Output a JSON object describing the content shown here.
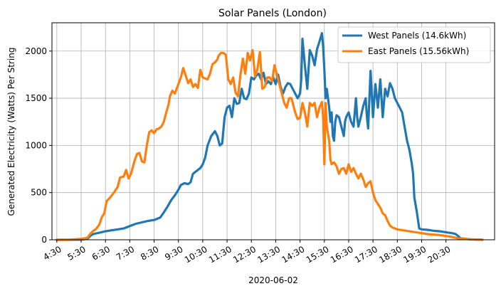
{
  "chart_data": {
    "type": "line",
    "title": "Solar Panels (London)",
    "xlabel": "2020-06-02",
    "ylabel": "Generated Electricity (Watts) Per String",
    "x_unit": "hours",
    "xlim": [
      4.3,
      22.5
    ],
    "ylim": [
      0,
      2300
    ],
    "x_ticks": [
      4.5,
      5.5,
      6.5,
      7.5,
      8.5,
      9.5,
      10.5,
      11.5,
      12.5,
      13.5,
      14.5,
      15.5,
      16.5,
      17.5,
      18.5,
      19.5,
      20.5
    ],
    "x_tick_labels": [
      "4:30",
      "5:30",
      "6:30",
      "7:30",
      "8:30",
      "9:30",
      "10:30",
      "11:30",
      "12:30",
      "13:30",
      "14:30",
      "15:30",
      "16:30",
      "17:30",
      "18:30",
      "19:30",
      "20:30"
    ],
    "y_ticks": [
      0,
      500,
      1000,
      1500,
      2000
    ],
    "y_tick_labels": [
      "0",
      "500",
      "1000",
      "1500",
      "2000"
    ],
    "grid": true,
    "legend_position": "top-right",
    "series": [
      {
        "name": "West Panels (14.6kWh)",
        "color": "#1f77b4",
        "points": [
          [
            4.5,
            0
          ],
          [
            5.0,
            0
          ],
          [
            5.5,
            2
          ],
          [
            5.75,
            10
          ],
          [
            5.9,
            45
          ],
          [
            6.0,
            60
          ],
          [
            6.25,
            75
          ],
          [
            6.5,
            90
          ],
          [
            6.75,
            100
          ],
          [
            7.0,
            110
          ],
          [
            7.25,
            120
          ],
          [
            7.5,
            145
          ],
          [
            7.75,
            170
          ],
          [
            8.0,
            185
          ],
          [
            8.25,
            200
          ],
          [
            8.5,
            210
          ],
          [
            8.75,
            235
          ],
          [
            8.9,
            290
          ],
          [
            9.05,
            350
          ],
          [
            9.2,
            420
          ],
          [
            9.35,
            470
          ],
          [
            9.5,
            530
          ],
          [
            9.6,
            580
          ],
          [
            9.75,
            600
          ],
          [
            9.9,
            590
          ],
          [
            10.0,
            610
          ],
          [
            10.1,
            700
          ],
          [
            10.25,
            730
          ],
          [
            10.4,
            760
          ],
          [
            10.5,
            800
          ],
          [
            10.6,
            870
          ],
          [
            10.7,
            1000
          ],
          [
            10.85,
            1100
          ],
          [
            11.0,
            1150
          ],
          [
            11.1,
            1100
          ],
          [
            11.2,
            1000
          ],
          [
            11.3,
            1020
          ],
          [
            11.4,
            1300
          ],
          [
            11.5,
            1400
          ],
          [
            11.6,
            1420
          ],
          [
            11.7,
            1300
          ],
          [
            11.8,
            1500
          ],
          [
            11.9,
            1440
          ],
          [
            12.0,
            1450
          ],
          [
            12.1,
            1600
          ],
          [
            12.2,
            1500
          ],
          [
            12.3,
            1490
          ],
          [
            12.4,
            1550
          ],
          [
            12.5,
            1720
          ],
          [
            12.6,
            1700
          ],
          [
            12.7,
            1740
          ],
          [
            12.8,
            1760
          ],
          [
            12.9,
            1700
          ],
          [
            13.0,
            1770
          ],
          [
            13.1,
            1650
          ],
          [
            13.2,
            1680
          ],
          [
            13.3,
            1650
          ],
          [
            13.4,
            1720
          ],
          [
            13.5,
            1650
          ],
          [
            13.6,
            1750
          ],
          [
            13.7,
            1620
          ],
          [
            13.8,
            1550
          ],
          [
            13.9,
            1620
          ],
          [
            14.0,
            1660
          ],
          [
            14.1,
            1650
          ],
          [
            14.2,
            1600
          ],
          [
            14.3,
            1550
          ],
          [
            14.4,
            1500
          ],
          [
            14.5,
            1550
          ],
          [
            14.55,
            1700
          ],
          [
            14.6,
            2130
          ],
          [
            14.7,
            1850
          ],
          [
            14.8,
            1600
          ],
          [
            14.9,
            2010
          ],
          [
            15.0,
            1950
          ],
          [
            15.1,
            1850
          ],
          [
            15.2,
            2020
          ],
          [
            15.3,
            2100
          ],
          [
            15.4,
            2190
          ],
          [
            15.45,
            2050
          ],
          [
            15.5,
            1800
          ],
          [
            15.55,
            1500
          ],
          [
            15.6,
            1600
          ],
          [
            15.7,
            1400
          ],
          [
            15.75,
            1250
          ],
          [
            15.8,
            1350
          ],
          [
            15.85,
            1100
          ],
          [
            15.9,
            1050
          ],
          [
            15.95,
            1250
          ],
          [
            16.0,
            1320
          ],
          [
            16.1,
            1300
          ],
          [
            16.2,
            1200
          ],
          [
            16.3,
            1100
          ],
          [
            16.35,
            1250
          ],
          [
            16.4,
            1300
          ],
          [
            16.5,
            1350
          ],
          [
            16.6,
            1250
          ],
          [
            16.7,
            1200
          ],
          [
            16.75,
            1350
          ],
          [
            16.8,
            1500
          ],
          [
            16.85,
            1300
          ],
          [
            16.9,
            1200
          ],
          [
            17.0,
            1300
          ],
          [
            17.1,
            1420
          ],
          [
            17.2,
            1500
          ],
          [
            17.25,
            1300
          ],
          [
            17.3,
            1180
          ],
          [
            17.4,
            1790
          ],
          [
            17.5,
            1300
          ],
          [
            17.6,
            1650
          ],
          [
            17.7,
            1400
          ],
          [
            17.8,
            1700
          ],
          [
            17.9,
            1300
          ],
          [
            18.0,
            1600
          ],
          [
            18.1,
            1520
          ],
          [
            18.2,
            1660
          ],
          [
            18.3,
            1600
          ],
          [
            18.4,
            1500
          ],
          [
            18.5,
            1450
          ],
          [
            18.6,
            1400
          ],
          [
            18.7,
            1350
          ],
          [
            18.8,
            1200
          ],
          [
            18.9,
            1050
          ],
          [
            19.0,
            950
          ],
          [
            19.1,
            800
          ],
          [
            19.15,
            700
          ],
          [
            19.2,
            450
          ],
          [
            19.3,
            300
          ],
          [
            19.4,
            120
          ],
          [
            19.5,
            110
          ],
          [
            19.75,
            105
          ],
          [
            20.0,
            95
          ],
          [
            20.25,
            90
          ],
          [
            20.5,
            80
          ],
          [
            20.75,
            70
          ],
          [
            20.9,
            60
          ],
          [
            21.0,
            40
          ],
          [
            21.1,
            15
          ],
          [
            21.5,
            5
          ],
          [
            22.0,
            0
          ]
        ]
      },
      {
        "name": "East Panels (15.56kWh)",
        "color": "#ff7f0e",
        "points": [
          [
            4.5,
            0
          ],
          [
            5.0,
            0
          ],
          [
            5.25,
            5
          ],
          [
            5.5,
            10
          ],
          [
            5.75,
            20
          ],
          [
            5.9,
            70
          ],
          [
            6.0,
            95
          ],
          [
            6.1,
            110
          ],
          [
            6.25,
            160
          ],
          [
            6.35,
            240
          ],
          [
            6.45,
            280
          ],
          [
            6.55,
            410
          ],
          [
            6.7,
            450
          ],
          [
            6.85,
            500
          ],
          [
            7.0,
            560
          ],
          [
            7.1,
            660
          ],
          [
            7.25,
            670
          ],
          [
            7.35,
            740
          ],
          [
            7.45,
            650
          ],
          [
            7.55,
            700
          ],
          [
            7.7,
            840
          ],
          [
            7.8,
            910
          ],
          [
            7.9,
            920
          ],
          [
            8.0,
            830
          ],
          [
            8.1,
            820
          ],
          [
            8.2,
            1000
          ],
          [
            8.3,
            1140
          ],
          [
            8.4,
            1160
          ],
          [
            8.5,
            1130
          ],
          [
            8.6,
            1170
          ],
          [
            8.7,
            1180
          ],
          [
            8.8,
            1200
          ],
          [
            8.9,
            1250
          ],
          [
            9.0,
            1350
          ],
          [
            9.1,
            1440
          ],
          [
            9.15,
            1520
          ],
          [
            9.25,
            1580
          ],
          [
            9.35,
            1550
          ],
          [
            9.5,
            1650
          ],
          [
            9.6,
            1720
          ],
          [
            9.7,
            1820
          ],
          [
            9.8,
            1740
          ],
          [
            9.9,
            1660
          ],
          [
            10.0,
            1700
          ],
          [
            10.1,
            1620
          ],
          [
            10.2,
            1650
          ],
          [
            10.3,
            1610
          ],
          [
            10.4,
            1800
          ],
          [
            10.5,
            1720
          ],
          [
            10.6,
            1710
          ],
          [
            10.7,
            1700
          ],
          [
            10.8,
            1760
          ],
          [
            10.9,
            1860
          ],
          [
            11.0,
            1880
          ],
          [
            11.1,
            1910
          ],
          [
            11.15,
            1950
          ],
          [
            11.25,
            1980
          ],
          [
            11.35,
            1980
          ],
          [
            11.45,
            1960
          ],
          [
            11.55,
            1700
          ],
          [
            11.65,
            1650
          ],
          [
            11.75,
            1720
          ],
          [
            11.85,
            1560
          ],
          [
            11.95,
            1520
          ],
          [
            12.05,
            1750
          ],
          [
            12.15,
            1920
          ],
          [
            12.25,
            1760
          ],
          [
            12.35,
            1980
          ],
          [
            12.45,
            1900
          ],
          [
            12.55,
            2010
          ],
          [
            12.65,
            1730
          ],
          [
            12.75,
            1810
          ],
          [
            12.85,
            1990
          ],
          [
            12.95,
            1600
          ],
          [
            13.05,
            1620
          ],
          [
            13.15,
            1720
          ],
          [
            13.25,
            1720
          ],
          [
            13.35,
            1680
          ],
          [
            13.45,
            1850
          ],
          [
            13.55,
            1750
          ],
          [
            13.65,
            1650
          ],
          [
            13.75,
            1550
          ],
          [
            13.85,
            1450
          ],
          [
            13.95,
            1400
          ],
          [
            14.05,
            1500
          ],
          [
            14.15,
            1500
          ],
          [
            14.3,
            1350
          ],
          [
            14.4,
            1280
          ],
          [
            14.5,
            1290
          ],
          [
            14.6,
            1450
          ],
          [
            14.7,
            1350
          ],
          [
            14.8,
            1200
          ],
          [
            14.9,
            1450
          ],
          [
            15.0,
            1420
          ],
          [
            15.1,
            1450
          ],
          [
            15.2,
            1300
          ],
          [
            15.3,
            1400
          ],
          [
            15.4,
            1460
          ],
          [
            15.45,
            1300
          ],
          [
            15.5,
            800
          ],
          [
            15.55,
            1450
          ],
          [
            15.6,
            1200
          ],
          [
            15.7,
            1050
          ],
          [
            15.75,
            850
          ],
          [
            15.8,
            800
          ],
          [
            15.9,
            820
          ],
          [
            16.0,
            780
          ],
          [
            16.1,
            700
          ],
          [
            16.2,
            750
          ],
          [
            16.3,
            760
          ],
          [
            16.4,
            700
          ],
          [
            16.5,
            800
          ],
          [
            16.6,
            720
          ],
          [
            16.7,
            760
          ],
          [
            16.8,
            700
          ],
          [
            16.9,
            650
          ],
          [
            17.0,
            700
          ],
          [
            17.1,
            640
          ],
          [
            17.2,
            560
          ],
          [
            17.3,
            600
          ],
          [
            17.4,
            620
          ],
          [
            17.5,
            500
          ],
          [
            17.6,
            420
          ],
          [
            17.7,
            380
          ],
          [
            17.8,
            340
          ],
          [
            17.9,
            280
          ],
          [
            18.0,
            260
          ],
          [
            18.1,
            200
          ],
          [
            18.2,
            150
          ],
          [
            18.3,
            130
          ],
          [
            18.5,
            110
          ],
          [
            18.75,
            100
          ],
          [
            19.0,
            90
          ],
          [
            19.25,
            80
          ],
          [
            19.5,
            70
          ],
          [
            19.75,
            60
          ],
          [
            20.0,
            55
          ],
          [
            20.25,
            50
          ],
          [
            20.5,
            40
          ],
          [
            20.75,
            30
          ],
          [
            21.0,
            15
          ],
          [
            21.25,
            10
          ],
          [
            21.5,
            5
          ],
          [
            22.0,
            0
          ]
        ]
      }
    ]
  }
}
